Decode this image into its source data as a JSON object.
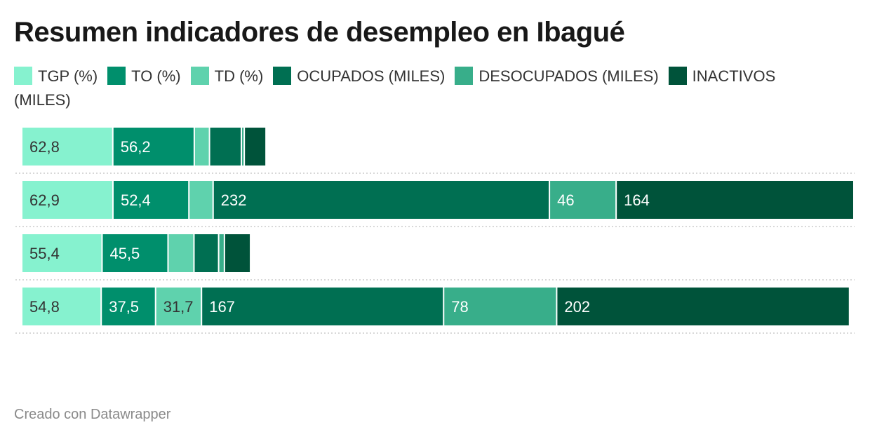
{
  "title": "Resumen indicadores de desempleo en Ibagué",
  "footer": "Creado con Datawrapper",
  "colors": {
    "TGP (%)": "#86f2cf",
    "TO (%)": "#008f6c",
    "TD (%)": "#5fd2ad",
    "OCUPADOS (MILES)": "#006f52",
    "DESOCUPADOS (MILES)": "#38ae8a",
    "INACTIVOS (MILES)": "#00533a",
    "separator": "#cccccc"
  },
  "chart_data": {
    "type": "bar",
    "orientation": "horizontal",
    "stacked": true,
    "title": "Resumen indicadores de desempleo en Ibagué",
    "legend_position": "top",
    "grid": false,
    "categories": [
      "",
      "",
      "",
      ""
    ],
    "series": [
      {
        "name": "TGP (%)",
        "values": [
          62.8,
          62.9,
          55.4,
          54.8
        ],
        "labels": [
          "62,8",
          "62,9",
          "55,4",
          "54,8"
        ]
      },
      {
        "name": "TO (%)",
        "values": [
          56.2,
          52.4,
          45.5,
          37.5
        ],
        "labels": [
          "56,2",
          "52,4",
          "45,5",
          "37,5"
        ]
      },
      {
        "name": "TD (%)",
        "values": [
          10.5,
          16.7,
          17.9,
          31.7
        ],
        "labels": [
          "",
          "",
          "",
          "31,7"
        ]
      },
      {
        "name": "OCUPADOS (MILES)",
        "values": [
          22,
          232,
          17,
          167
        ],
        "labels": [
          "",
          "232",
          "",
          "167"
        ]
      },
      {
        "name": "DESOCUPADOS (MILES)",
        "values": [
          2,
          46,
          4,
          78
        ],
        "labels": [
          "",
          "46",
          "",
          "78"
        ]
      },
      {
        "name": "INACTIVOS (MILES)",
        "values": [
          15,
          164,
          18,
          202
        ],
        "labels": [
          "",
          "164",
          "",
          "202"
        ]
      }
    ]
  }
}
